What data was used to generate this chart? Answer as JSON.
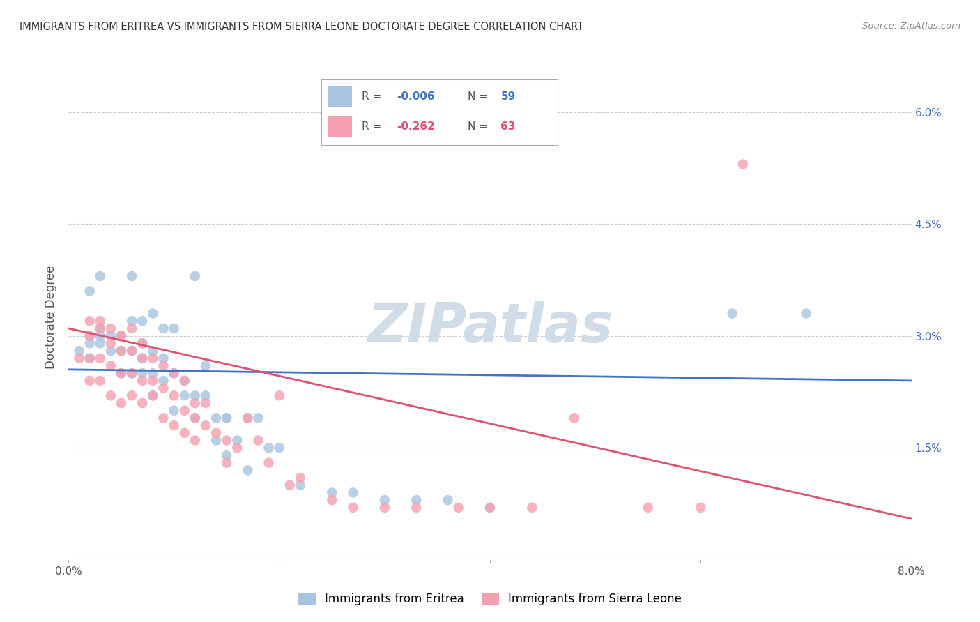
{
  "title": "IMMIGRANTS FROM ERITREA VS IMMIGRANTS FROM SIERRA LEONE DOCTORATE DEGREE CORRELATION CHART",
  "source": "Source: ZipAtlas.com",
  "ylabel": "Doctorate Degree",
  "xlim": [
    0.0,
    0.08
  ],
  "ylim": [
    0.0,
    0.065
  ],
  "xticks": [
    0.0,
    0.02,
    0.04,
    0.06,
    0.08
  ],
  "xtick_labels": [
    "0.0%",
    "",
    "",
    "",
    "8.0%"
  ],
  "yticks": [
    0.0,
    0.015,
    0.03,
    0.045,
    0.06
  ],
  "left_ytick_labels": [
    "",
    "",
    "",
    "",
    ""
  ],
  "right_ytick_labels": [
    "",
    "1.5%",
    "3.0%",
    "4.5%",
    "6.0%"
  ],
  "legend_R1": "R = -0.006",
  "legend_N1": "N = 59",
  "legend_R2": "R =  -0.262",
  "legend_N2": "N = 63",
  "series1_label": "Immigrants from Eritrea",
  "series2_label": "Immigrants from Sierra Leone",
  "series1_color": "#a8c4e0",
  "series2_color": "#f4a0b0",
  "line1_color": "#4472c4",
  "line2_color": "#e05070",
  "watermark": "ZIPatlas",
  "watermark_color": "#d0dce8",
  "background_color": "#ffffff",
  "grid_color": "#cccccc",
  "title_color": "#333333",
  "axis_label_color": "#555555",
  "right_tick_color": "#4472c4",
  "series1_x": [
    0.001,
    0.002,
    0.002,
    0.002,
    0.003,
    0.003,
    0.003,
    0.004,
    0.004,
    0.005,
    0.005,
    0.005,
    0.006,
    0.006,
    0.006,
    0.007,
    0.007,
    0.007,
    0.007,
    0.008,
    0.008,
    0.008,
    0.009,
    0.009,
    0.009,
    0.01,
    0.01,
    0.011,
    0.011,
    0.012,
    0.012,
    0.013,
    0.014,
    0.014,
    0.015,
    0.015,
    0.016,
    0.017,
    0.018,
    0.019,
    0.02,
    0.022,
    0.025,
    0.027,
    0.03,
    0.033,
    0.036,
    0.04,
    0.063,
    0.07,
    0.002,
    0.003,
    0.006,
    0.008,
    0.01,
    0.012,
    0.013,
    0.015,
    0.017
  ],
  "series1_y": [
    0.028,
    0.029,
    0.03,
    0.027,
    0.03,
    0.029,
    0.031,
    0.028,
    0.03,
    0.03,
    0.028,
    0.025,
    0.032,
    0.028,
    0.025,
    0.032,
    0.029,
    0.027,
    0.025,
    0.028,
    0.025,
    0.022,
    0.031,
    0.027,
    0.024,
    0.025,
    0.02,
    0.024,
    0.022,
    0.022,
    0.019,
    0.022,
    0.019,
    0.016,
    0.019,
    0.014,
    0.016,
    0.019,
    0.019,
    0.015,
    0.015,
    0.01,
    0.009,
    0.009,
    0.008,
    0.008,
    0.008,
    0.007,
    0.033,
    0.033,
    0.036,
    0.038,
    0.038,
    0.033,
    0.031,
    0.038,
    0.026,
    0.019,
    0.012
  ],
  "series2_x": [
    0.001,
    0.002,
    0.002,
    0.002,
    0.003,
    0.003,
    0.003,
    0.004,
    0.004,
    0.004,
    0.005,
    0.005,
    0.005,
    0.006,
    0.006,
    0.006,
    0.007,
    0.007,
    0.007,
    0.008,
    0.008,
    0.009,
    0.009,
    0.01,
    0.01,
    0.011,
    0.011,
    0.012,
    0.012,
    0.013,
    0.013,
    0.014,
    0.015,
    0.015,
    0.016,
    0.017,
    0.018,
    0.019,
    0.02,
    0.021,
    0.022,
    0.025,
    0.027,
    0.03,
    0.033,
    0.037,
    0.04,
    0.044,
    0.048,
    0.055,
    0.06,
    0.064,
    0.002,
    0.003,
    0.004,
    0.005,
    0.006,
    0.007,
    0.008,
    0.009,
    0.01,
    0.011,
    0.012
  ],
  "series2_y": [
    0.027,
    0.03,
    0.027,
    0.024,
    0.031,
    0.027,
    0.024,
    0.029,
    0.026,
    0.022,
    0.028,
    0.025,
    0.021,
    0.028,
    0.025,
    0.022,
    0.027,
    0.024,
    0.021,
    0.024,
    0.022,
    0.023,
    0.019,
    0.022,
    0.018,
    0.02,
    0.017,
    0.019,
    0.016,
    0.021,
    0.018,
    0.017,
    0.016,
    0.013,
    0.015,
    0.019,
    0.016,
    0.013,
    0.022,
    0.01,
    0.011,
    0.008,
    0.007,
    0.007,
    0.007,
    0.007,
    0.007,
    0.007,
    0.019,
    0.007,
    0.007,
    0.053,
    0.032,
    0.032,
    0.031,
    0.03,
    0.031,
    0.029,
    0.027,
    0.026,
    0.025,
    0.024,
    0.021
  ],
  "line1_x": [
    0.0,
    0.08
  ],
  "line1_y": [
    0.0255,
    0.024
  ],
  "line2_x": [
    0.0,
    0.08
  ],
  "line2_y": [
    0.031,
    0.0055
  ]
}
